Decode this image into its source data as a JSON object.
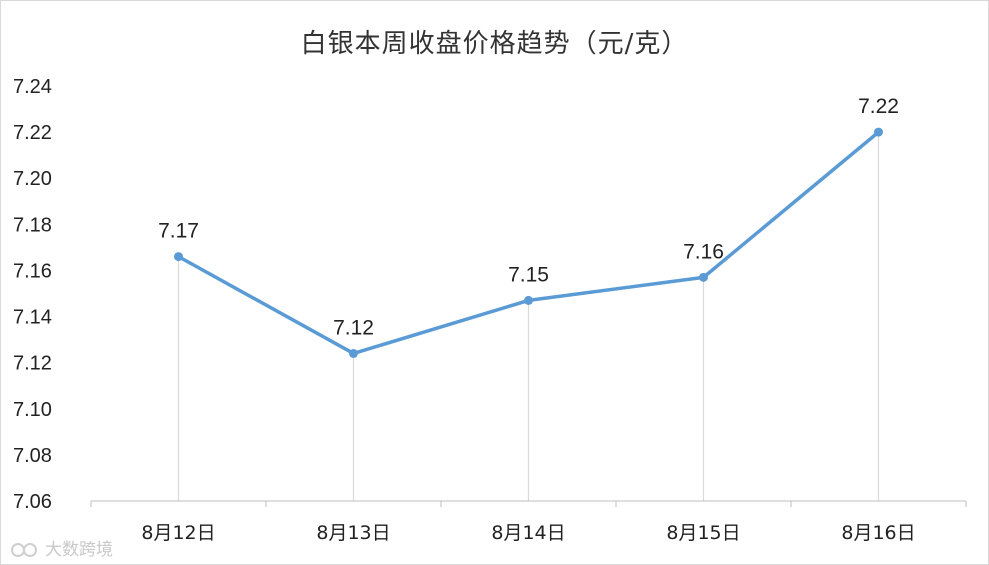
{
  "chart_data": {
    "type": "line",
    "title": "白银本周收盘价格趋势（元/克）",
    "categories": [
      "8月12日",
      "8月13日",
      "8月14日",
      "8月15日",
      "8月16日"
    ],
    "series": [
      {
        "values": [
          7.166,
          7.124,
          7.147,
          7.157,
          7.22
        ],
        "labels": [
          "7.17",
          "7.12",
          "7.15",
          "7.16",
          "7.22"
        ]
      }
    ],
    "yticks": [
      "7.06",
      "7.08",
      "7.10",
      "7.12",
      "7.14",
      "7.16",
      "7.18",
      "7.20",
      "7.22",
      "7.24"
    ],
    "ylim": [
      7.06,
      7.24
    ],
    "grid": false,
    "drop_lines": true,
    "line_color": "#5b9bd5",
    "drop_line_color": "#d9d9d9"
  },
  "watermark": {
    "text": "大数跨境"
  }
}
